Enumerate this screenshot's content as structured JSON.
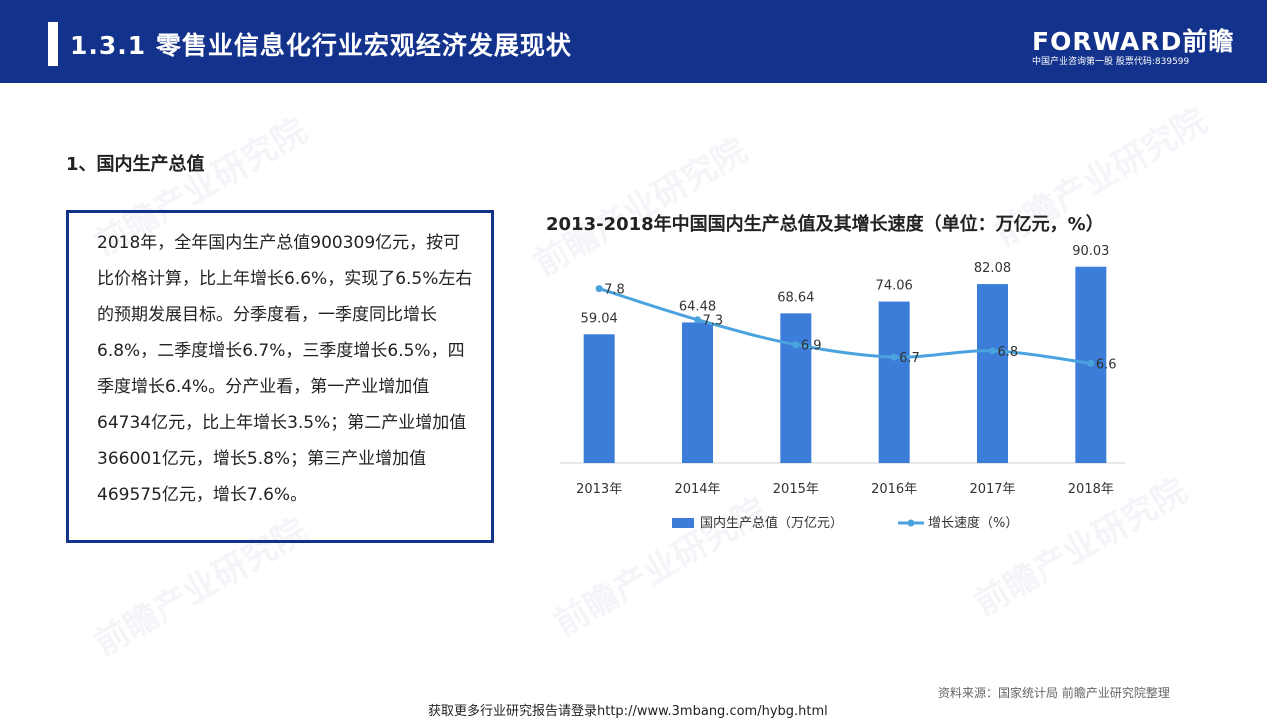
{
  "header": {
    "title": "1.3.1  零售业信息化行业宏观经济发展现状",
    "brand": "FORWARD前瞻",
    "brand_sub": "中国产业咨询第一股  股票代码:839599"
  },
  "section_heading": "1、国内生产总值",
  "text_box": "2018年，全年国内生产总值900309亿元，按可比价格计算，比上年增长6.6%，实现了6.5%左右的预期发展目标。分季度看，一季度同比增长6.8%，二季度增长6.7%，三季度增长6.5%，四季度增长6.4%。分产业看，第一产业增加值64734亿元，比上年增长3.5%；第二产业增加值366001亿元，增长5.8%；第三产业增加值469575亿元，增长7.6%。",
  "watermark": "前瞻产业研究院",
  "colors": {
    "header_bg": "#13328c",
    "bar": "#3b7dd8",
    "line": "#4aa3df"
  },
  "chart_data": {
    "type": "bar",
    "title": "2013-2018年中国国内生产总值及其增长速度（单位：万亿元，%）",
    "categories": [
      "2013年",
      "2014年",
      "2015年",
      "2016年",
      "2017年",
      "2018年"
    ],
    "series": [
      {
        "name": "国内生产总值（万亿元）",
        "type": "bar",
        "values": [
          59.04,
          64.48,
          68.64,
          74.06,
          82.08,
          90.03
        ]
      },
      {
        "name": "增长速度（%）",
        "type": "line",
        "values": [
          7.8,
          7.3,
          6.9,
          6.7,
          6.8,
          6.6
        ]
      }
    ],
    "ylim_bar": [
      0,
      100
    ],
    "ylim_line": [
      5,
      8.5
    ]
  },
  "footer": {
    "source": "资料来源：国家统计局 前瞻产业研究院整理",
    "link": "获取更多行业研究报告请登录http://www.3mbang.com/hybg.html"
  }
}
